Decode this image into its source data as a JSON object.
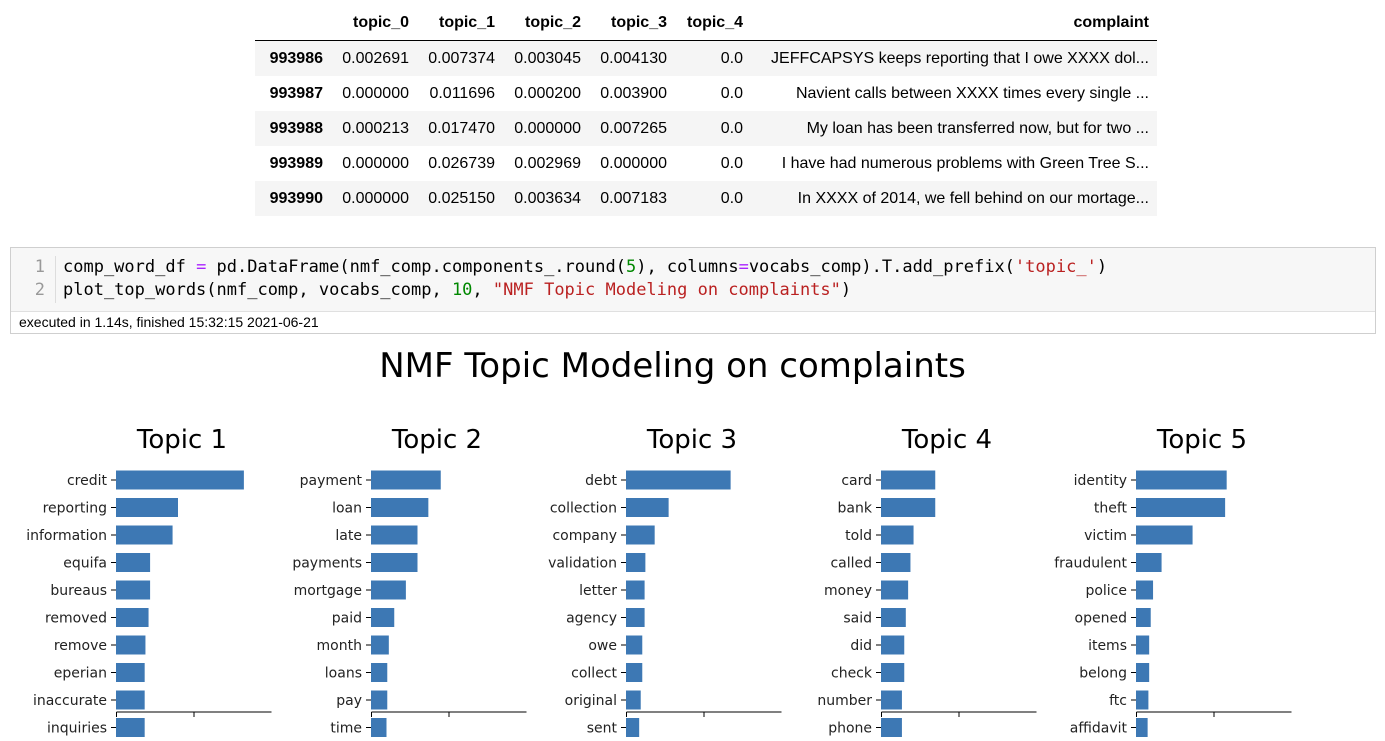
{
  "dataframe": {
    "columns": [
      "",
      "topic_0",
      "topic_1",
      "topic_2",
      "topic_3",
      "topic_4",
      "complaint"
    ],
    "rows": [
      {
        "index": "993986",
        "topic_0": "0.002691",
        "topic_1": "0.007374",
        "topic_2": "0.003045",
        "topic_3": "0.004130",
        "topic_4": "0.0",
        "complaint": "JEFFCAPSYS keeps reporting that I owe XXXX dol..."
      },
      {
        "index": "993987",
        "topic_0": "0.000000",
        "topic_1": "0.011696",
        "topic_2": "0.000200",
        "topic_3": "0.003900",
        "topic_4": "0.0",
        "complaint": "Navient calls between XXXX times every single ..."
      },
      {
        "index": "993988",
        "topic_0": "0.000213",
        "topic_1": "0.017470",
        "topic_2": "0.000000",
        "topic_3": "0.007265",
        "topic_4": "0.0",
        "complaint": "My loan has been transferred now, but for two ..."
      },
      {
        "index": "993989",
        "topic_0": "0.000000",
        "topic_1": "0.026739",
        "topic_2": "0.002969",
        "topic_3": "0.000000",
        "topic_4": "0.0",
        "complaint": "I have had numerous problems with Green Tree S..."
      },
      {
        "index": "993990",
        "topic_0": "0.000000",
        "topic_1": "0.025150",
        "topic_2": "0.003634",
        "topic_3": "0.007183",
        "topic_4": "0.0",
        "complaint": "In XXXX of 2014, we fell behind on our mortage..."
      }
    ]
  },
  "code_cell": {
    "line_numbers": [
      "1",
      "2"
    ],
    "line1": {
      "a": "comp_word_df ",
      "op1": "=",
      "b": " pd.DataFrame(nmf_comp.components_.round(",
      "num1": "5",
      "c": "), columns",
      "op2": "=",
      "d": "vocabs_comp).T.add_prefix(",
      "str1": "'topic_'",
      "e": ")"
    },
    "line2": {
      "a": "plot_top_words(nmf_comp, vocabs_comp, ",
      "num1": "10",
      "b": ", ",
      "str1": "\"NMF Topic Modeling on complaints\"",
      "c": ")"
    },
    "exec_info": "executed in 1.14s, finished 15:32:15 2021-06-21"
  },
  "chart_data": {
    "type": "bar",
    "title": "NMF Topic Modeling on complaints",
    "bar_color": "#3d78b4",
    "panels": [
      {
        "title": "Topic 1",
        "categories": [
          "credit",
          "reporting",
          "information",
          "equifa",
          "bureaus",
          "removed",
          "remove",
          "eperian",
          "inaccurate",
          "inquiries"
        ],
        "values": [
          1.65,
          0.8,
          0.73,
          0.44,
          0.44,
          0.42,
          0.38,
          0.37,
          0.37,
          0.37
        ]
      },
      {
        "title": "Topic 2",
        "categories": [
          "payment",
          "loan",
          "late",
          "payments",
          "mortgage",
          "paid",
          "month",
          "loans",
          "pay",
          "time"
        ],
        "values": [
          0.9,
          0.74,
          0.6,
          0.6,
          0.45,
          0.3,
          0.23,
          0.21,
          0.21,
          0.2
        ]
      },
      {
        "title": "Topic 3",
        "categories": [
          "debt",
          "collection",
          "company",
          "validation",
          "letter",
          "agency",
          "owe",
          "collect",
          "original",
          "sent"
        ],
        "values": [
          1.35,
          0.55,
          0.37,
          0.25,
          0.24,
          0.24,
          0.21,
          0.21,
          0.19,
          0.17
        ]
      },
      {
        "title": "Topic 4",
        "categories": [
          "card",
          "bank",
          "told",
          "called",
          "money",
          "said",
          "did",
          "check",
          "number",
          "phone"
        ],
        "values": [
          0.7,
          0.7,
          0.42,
          0.38,
          0.35,
          0.32,
          0.3,
          0.3,
          0.27,
          0.27
        ]
      },
      {
        "title": "Topic 5",
        "categories": [
          "identity",
          "theft",
          "victim",
          "fraudulent",
          "police",
          "opened",
          "items",
          "belong",
          "ftc",
          "affidavit"
        ],
        "values": [
          1.17,
          1.15,
          0.73,
          0.33,
          0.22,
          0.19,
          0.17,
          0.17,
          0.16,
          0.15
        ]
      }
    ],
    "xlim": [
      0,
      2
    ]
  }
}
